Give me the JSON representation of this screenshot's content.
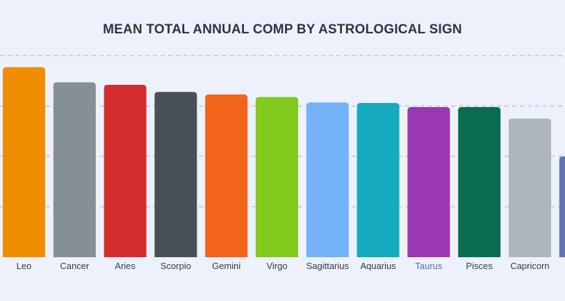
{
  "chart_data": {
    "type": "bar",
    "title": "MEAN TOTAL ANNUAL COMP BY ASTROLOGICAL SIGN",
    "xlabel": "",
    "ylabel": "",
    "grid": true,
    "legend": "none",
    "ylim": [
      0,
      4
    ],
    "categories": [
      "Leo",
      "Cancer",
      "Aries",
      "Scorpio",
      "Gemini",
      "Virgo",
      "Sagittarius",
      "Aquarius",
      "Taurus",
      "Pisces",
      "Capricorn",
      ""
    ],
    "values": [
      3.77,
      3.47,
      3.42,
      3.28,
      3.23,
      3.18,
      3.07,
      3.06,
      2.98,
      2.98,
      2.75,
      2.0
    ],
    "colors": [
      "#f08c00",
      "#868e96",
      "#d42e2e",
      "#495057",
      "#f26419",
      "#82c91e",
      "#74b3f7",
      "#15aabf",
      "#9c36b5",
      "#086e4f",
      "#adb5bd",
      "#6272b8"
    ],
    "label_colors": [
      "#343a40",
      "#343a40",
      "#343a40",
      "#343a40",
      "#343a40",
      "#343a40",
      "#343a40",
      "#343a40",
      "#5a6b9e",
      "#343a40",
      "#343a40",
      "#343a40"
    ]
  }
}
